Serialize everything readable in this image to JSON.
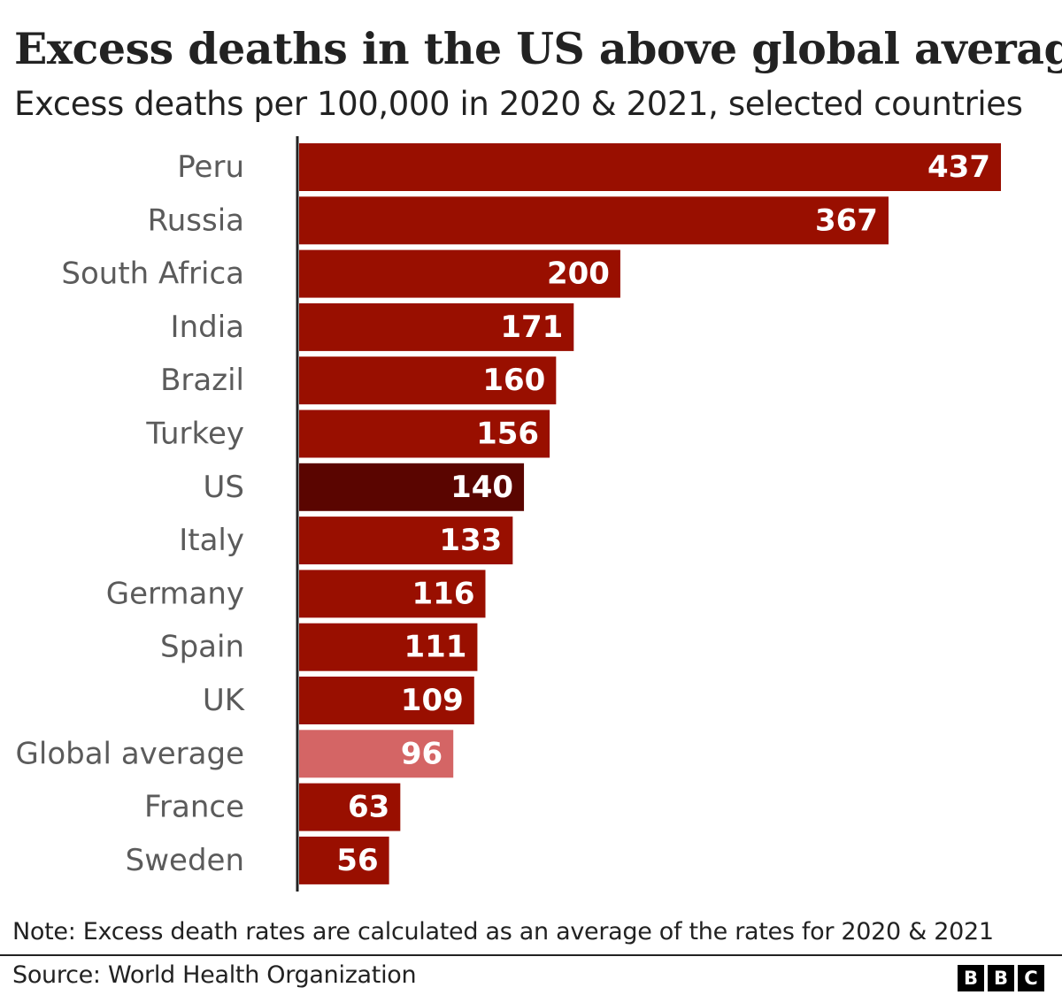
{
  "chart_data": {
    "type": "bar",
    "orientation": "horizontal",
    "title": "Excess deaths in the US above global average",
    "subtitle": "Excess deaths per 100,000 in 2020 & 2021, selected countries",
    "categories": [
      "Peru",
      "Russia",
      "South Africa",
      "India",
      "Brazil",
      "Turkey",
      "US",
      "Italy",
      "Germany",
      "Spain",
      "UK",
      "Global average",
      "France",
      "Sweden"
    ],
    "values": [
      437,
      367,
      200,
      171,
      160,
      156,
      140,
      133,
      116,
      111,
      109,
      96,
      63,
      56
    ],
    "colors": [
      "#990f00",
      "#990f00",
      "#990f00",
      "#990f00",
      "#990f00",
      "#990f00",
      "#5a0500",
      "#990f00",
      "#990f00",
      "#990f00",
      "#990f00",
      "#d46565",
      "#990f00",
      "#990f00"
    ],
    "xlim": [
      0,
      437
    ],
    "grid": false,
    "note": "Note: Excess death rates are calculated as an average of the rates for 2020 & 2021",
    "source": "Source: World Health Organization"
  },
  "branding": {
    "logo_letters": [
      "B",
      "B",
      "C"
    ]
  }
}
